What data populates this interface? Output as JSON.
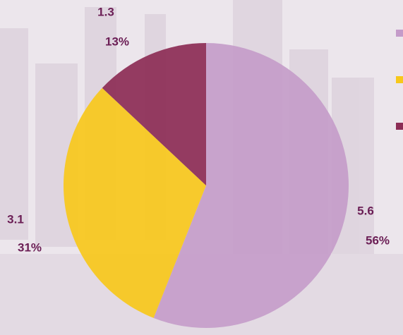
{
  "chart_data": {
    "type": "pie",
    "categories": [
      null,
      null,
      null
    ],
    "values": [
      5.6,
      3.1,
      1.3
    ],
    "percentages": [
      {
        "value": 56,
        "label": "56%"
      },
      {
        "value": 31,
        "label": "31%"
      },
      {
        "value": 13,
        "label": "13%"
      }
    ],
    "colors": [
      "#c49bc9",
      "#f7c81b",
      "#8c2c55"
    ],
    "legend": "right"
  }
}
